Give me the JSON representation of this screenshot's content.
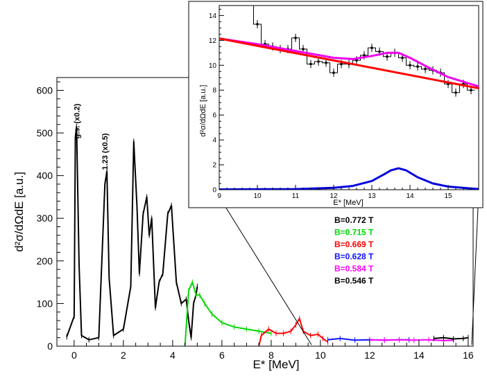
{
  "chart_data": [
    {
      "type": "line",
      "xlabel": "E* [MeV]",
      "ylabel": "d²σ/dΩdE [a.u.]",
      "xlim": [
        -0.7,
        16.2
      ],
      "ylim": [
        0,
        630
      ],
      "xticks": [
        0,
        2,
        4,
        6,
        8,
        10,
        12,
        14,
        16
      ],
      "yticks": [
        0,
        100,
        200,
        300,
        400,
        500,
        600
      ],
      "annotations": [
        "g.s. (x0.2)",
        "1.23 (x0.5)"
      ],
      "legend_placement": "right, below inset",
      "series": [
        {
          "name": "B=0.772 T",
          "color": "#000000",
          "x": [
            -0.3,
            0.0,
            0.05,
            0.1,
            0.2,
            0.3,
            0.6,
            1.0,
            1.25,
            1.33,
            1.42,
            1.6,
            2.0,
            2.3,
            2.42,
            2.55,
            2.65,
            2.8,
            2.95,
            3.05,
            3.15,
            3.3,
            3.45,
            3.6,
            3.8,
            3.95,
            4.15,
            4.35,
            4.55,
            4.65,
            4.75,
            4.85,
            4.95,
            5.0
          ],
          "y": [
            22,
            70,
            490,
            515,
            190,
            25,
            15,
            20,
            380,
            410,
            160,
            25,
            40,
            140,
            480,
            330,
            170,
            310,
            350,
            260,
            300,
            90,
            150,
            170,
            310,
            330,
            150,
            100,
            110,
            60,
            20,
            100,
            120,
            140
          ]
        },
        {
          "name": "B=0.715 T",
          "color": "#00d800",
          "x": [
            4.5,
            4.65,
            4.8,
            4.95,
            5.1,
            5.3,
            5.6,
            6.0,
            6.5,
            7.0,
            7.5,
            8.0
          ],
          "y": [
            0,
            130,
            150,
            120,
            120,
            100,
            75,
            55,
            45,
            40,
            35,
            30
          ]
        },
        {
          "name": "B=0.669 T",
          "color": "#ff0000",
          "x": [
            7.5,
            7.6,
            7.9,
            8.2,
            8.5,
            8.8,
            9.0,
            9.15,
            9.3,
            9.6,
            9.9,
            10.1,
            10.3
          ],
          "y": [
            0,
            25,
            40,
            30,
            30,
            35,
            50,
            65,
            35,
            25,
            28,
            18,
            10
          ]
        },
        {
          "name": "B=0.628 T",
          "color": "#1010ff",
          "x": [
            10.3,
            10.8,
            11.4,
            12.0,
            12.6,
            13.2,
            13.6
          ],
          "y": [
            15,
            18,
            14,
            15,
            14,
            15,
            15
          ]
        },
        {
          "name": "B=0.584 T",
          "color": "#ff00ff",
          "x": [
            12.0,
            12.6,
            13.2,
            13.8,
            14.4,
            15.0,
            15.4
          ],
          "y": [
            15,
            14,
            15,
            14,
            15,
            13,
            14
          ]
        },
        {
          "name": "B=0.546 T",
          "color": "#000000",
          "x": [
            14.6,
            15.0,
            15.4,
            15.8,
            16.0
          ],
          "y": [
            18,
            20,
            17,
            18,
            20
          ]
        }
      ]
    },
    {
      "type": "line",
      "xlabel": "E* [MeV]",
      "ylabel": "d²σ/dΩdE [a.u.]",
      "xlim": [
        9,
        15.8
      ],
      "ylim": [
        0,
        14.8
      ],
      "xticks": [
        9,
        10,
        11,
        12,
        13,
        14,
        15
      ],
      "yticks": [
        0,
        2,
        4,
        6,
        8,
        10,
        12,
        14
      ],
      "series": [
        {
          "type": "step",
          "color": "#000000",
          "x": [
            10.0,
            10.2,
            10.4,
            10.6,
            10.8,
            11.0,
            11.2,
            11.4,
            11.6,
            11.8,
            12.0,
            12.2,
            12.4,
            12.6,
            12.8,
            13.0,
            13.2,
            13.4,
            13.6,
            13.8,
            14.0,
            14.2,
            14.4,
            14.6,
            14.8,
            15.0,
            15.2,
            15.4,
            15.6
          ],
          "y": [
            13.3,
            11.7,
            11.5,
            11.3,
            11.3,
            12.2,
            11.3,
            10.1,
            10.3,
            10.2,
            9.4,
            10.1,
            10.1,
            10.4,
            10.8,
            11.4,
            11.1,
            10.7,
            11.0,
            10.6,
            10.0,
            9.9,
            9.7,
            9.6,
            9.4,
            8.5,
            7.8,
            8.5,
            8.0
          ]
        },
        {
          "type": "fit-total",
          "color": "#ee00ee",
          "x": [
            9.0,
            10.0,
            11.0,
            12.0,
            12.5,
            13.0,
            13.4,
            13.7,
            14.0,
            14.5,
            15.0,
            15.8
          ],
          "y": [
            12.15,
            11.7,
            11.15,
            10.6,
            10.5,
            10.75,
            11.0,
            11.0,
            10.6,
            9.8,
            9.05,
            8.3
          ]
        },
        {
          "type": "fit-background",
          "color": "#ff0000",
          "x": [
            9.0,
            15.8
          ],
          "y": [
            12.15,
            8.15
          ]
        },
        {
          "type": "fit-peak",
          "color": "#0000e0",
          "x": [
            9.0,
            11.0,
            12.0,
            12.5,
            13.0,
            13.3,
            13.5,
            13.7,
            13.9,
            14.2,
            14.6,
            15.0,
            15.8
          ],
          "y": [
            0.02,
            0.05,
            0.15,
            0.3,
            0.7,
            1.2,
            1.55,
            1.72,
            1.55,
            1.0,
            0.5,
            0.25,
            0.05
          ]
        }
      ]
    }
  ]
}
